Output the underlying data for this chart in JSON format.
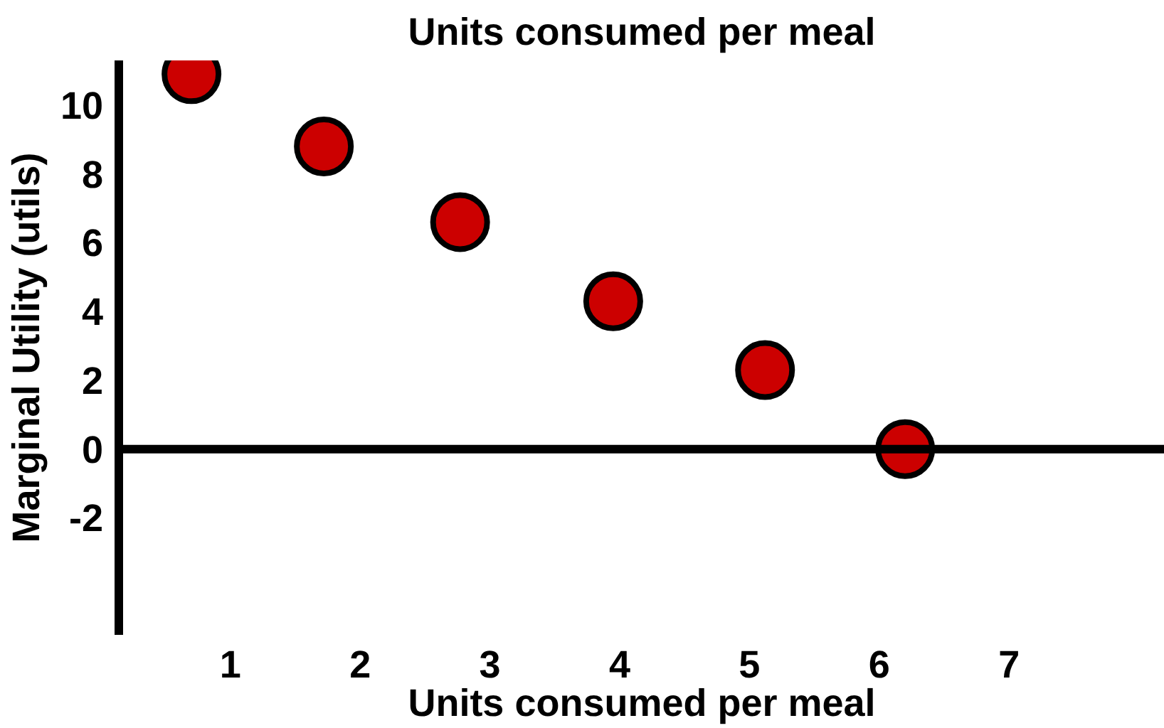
{
  "chart_data": {
    "type": "scatter",
    "title": "Units consumed per meal",
    "xlabel": "Units consumed per meal",
    "ylabel": "Marginal Utility (utils)",
    "x": [
      0.7,
      1.72,
      2.77,
      3.95,
      5.12,
      6.2
    ],
    "values": [
      10.9,
      8.8,
      6.6,
      4.3,
      2.3,
      0
    ],
    "color": "#cc0000",
    "marker": "circle",
    "xlim": [
      0.14,
      8.2
    ],
    "ylim": [
      -5.4,
      11.3
    ],
    "xticks": [
      1,
      2,
      3,
      4,
      5,
      6,
      7
    ],
    "yticks": [
      -2,
      0,
      2,
      4,
      6,
      8,
      10
    ],
    "ref_lines": [
      {
        "axis": "y",
        "value": 0,
        "color": "#000000"
      }
    ],
    "grid": false
  }
}
